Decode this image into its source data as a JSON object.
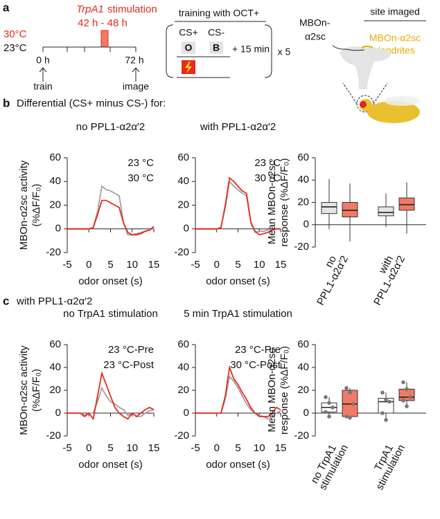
{
  "panel_labels": [
    "a",
    "b",
    "c"
  ],
  "panel_a": {
    "temp_high": "30°C",
    "temp_low": "23°C",
    "stim_gene": "TrpA1",
    "stim_word": "stimulation",
    "stim_window": "42 h - 48 h",
    "t0": "0 h",
    "t0_event": "train",
    "t1": "72 h",
    "t1_event": "image",
    "training_title": "training with OCT+",
    "cs_plus": "CS+",
    "cs_minus": "CS-",
    "odor_plus": "O",
    "odor_minus": "B",
    "interval": "+ 15 min",
    "repeats": "x 5",
    "neuron": [
      "MBOn-",
      "α2sc"
    ],
    "site_title": "site imaged",
    "site": [
      "MBOn-α2sc",
      "dendrites"
    ]
  },
  "panel_b_heading": "Differential (CS+ minus CS-) for:",
  "panel_c_heading": "with PPL1-α2α′2",
  "chart_data": [
    {
      "type": "line",
      "title": "no PPL1-α2α′2",
      "xlabel": "odor onset (s)",
      "ylabel": [
        "MBOn-α2sc activity",
        "(%ΔF/F₀)"
      ],
      "x": [
        -5,
        -4,
        -3,
        -2,
        -1,
        0,
        1,
        2,
        3,
        4,
        5,
        6,
        7,
        8,
        9,
        10,
        11,
        12,
        13,
        14,
        15
      ],
      "xlim": [
        -5,
        15
      ],
      "xticks": [
        -5,
        0,
        5,
        10,
        15
      ],
      "ylim": [
        -20,
        60
      ],
      "yticks": [
        -20,
        0,
        20,
        40,
        60
      ],
      "series": [
        {
          "name": "23 °C",
          "color": "#a0a0a0",
          "values": [
            0,
            0,
            0,
            0,
            0,
            0,
            1,
            15,
            36,
            33,
            32,
            30,
            28,
            5,
            -5,
            -5,
            -4,
            -3,
            -2,
            -1,
            1
          ]
        },
        {
          "name": "30 °C",
          "color": "#e8291c",
          "values": [
            0,
            0,
            0,
            0,
            0,
            0,
            1,
            12,
            24,
            24,
            22,
            20,
            18,
            5,
            -3,
            -5,
            -5,
            -4,
            -2,
            -1,
            2
          ]
        }
      ]
    },
    {
      "type": "line",
      "title": "with PPL1-α2α′2",
      "xlabel": "odor onset (s)",
      "x": [
        -5,
        -4,
        -3,
        -2,
        -1,
        0,
        1,
        2,
        3,
        4,
        5,
        6,
        7,
        8,
        9,
        10,
        11,
        12,
        13,
        14,
        15
      ],
      "xlim": [
        -5,
        15
      ],
      "xticks": [
        -5,
        0,
        5,
        10,
        15
      ],
      "ylim": [
        -20,
        60
      ],
      "yticks": [
        -20,
        0,
        20,
        40,
        60
      ],
      "series": [
        {
          "name": "23 °C",
          "color": "#a0a0a0",
          "values": [
            0,
            0,
            0,
            0,
            0,
            0,
            1,
            18,
            40,
            36,
            33,
            30,
            28,
            5,
            -3,
            -2,
            -2,
            -1,
            0,
            0,
            0
          ]
        },
        {
          "name": "30 °C",
          "color": "#e8291c",
          "values": [
            0,
            0,
            0,
            0,
            0,
            0,
            1,
            20,
            43,
            40,
            36,
            32,
            30,
            6,
            -2,
            -5,
            -4,
            -3,
            -1,
            0,
            0
          ]
        }
      ]
    },
    {
      "type": "box",
      "ylabel": [
        "Mean MBOn-α2sc",
        "response (%ΔF/F₀)"
      ],
      "ylim": [
        -20,
        60
      ],
      "yticks": [
        -20,
        0,
        20,
        40,
        60
      ],
      "categories": [
        [
          "no",
          "PPL1-α2α′2"
        ],
        [
          "with",
          "PPL1-α2α′2"
        ]
      ],
      "boxes": [
        {
          "color": "#e4e4e4",
          "min": -4,
          "q1": 10,
          "median": 16,
          "q3": 20,
          "max": 41
        },
        {
          "color": "#f07a66",
          "min": -15,
          "q1": 7,
          "median": 13,
          "q3": 20,
          "max": 37
        },
        {
          "color": "#e4e4e4",
          "min": -2,
          "q1": 8,
          "median": 11,
          "q3": 16,
          "max": 28
        },
        {
          "color": "#f07a66",
          "min": -8,
          "q1": 13,
          "median": 18,
          "q3": 24,
          "max": 38
        }
      ]
    },
    {
      "type": "line",
      "title": "no TrpA1 stimulation",
      "xlabel": "odor onset (s)",
      "ylabel": [
        "MBOn-α2sc activity",
        "(%ΔF/F₀)"
      ],
      "x": [
        -5,
        -4,
        -3,
        -2,
        -1,
        0,
        1,
        2,
        3,
        4,
        5,
        6,
        7,
        8,
        9,
        10,
        11,
        12,
        13,
        14,
        15
      ],
      "xlim": [
        -5,
        15
      ],
      "xticks": [
        -5,
        0,
        5,
        10,
        15
      ],
      "ylim": [
        -20,
        60
      ],
      "yticks": [
        -20,
        0,
        20,
        40,
        60
      ],
      "series": [
        {
          "name": "23 °C-Pre",
          "color": "#a0a0a0",
          "values": [
            0,
            0,
            0,
            0,
            -2,
            0,
            0,
            10,
            22,
            15,
            10,
            8,
            5,
            3,
            -2,
            0,
            -3,
            -3,
            0,
            2,
            3
          ]
        },
        {
          "name": "23 °C-Post",
          "color": "#e8291c",
          "values": [
            0,
            0,
            0,
            0,
            -3,
            0,
            -5,
            15,
            35,
            25,
            15,
            5,
            0,
            -3,
            -5,
            0,
            -3,
            0,
            3,
            5,
            3
          ]
        }
      ]
    },
    {
      "type": "line",
      "title": "5 min TrpA1 stimulation",
      "xlabel": "odor onset (s)",
      "x": [
        -5,
        -4,
        -3,
        -2,
        -1,
        0,
        1,
        2,
        3,
        4,
        5,
        6,
        7,
        8,
        9,
        10,
        11,
        12,
        13,
        14,
        15
      ],
      "xlim": [
        -5,
        15
      ],
      "xticks": [
        -5,
        0,
        5,
        10,
        15
      ],
      "ylim": [
        -20,
        60
      ],
      "yticks": [
        -20,
        0,
        20,
        40,
        60
      ],
      "series": [
        {
          "name": "23 °C-Pre",
          "color": "#a0a0a0",
          "values": [
            0,
            0,
            0,
            0,
            0,
            0,
            0,
            12,
            32,
            28,
            22,
            15,
            8,
            3,
            0,
            -2,
            -3,
            -5,
            -3,
            0,
            2
          ]
        },
        {
          "name": "30 °C-Post",
          "color": "#e8291c",
          "values": [
            0,
            0,
            0,
            0,
            0,
            0,
            0,
            15,
            40,
            30,
            25,
            18,
            12,
            5,
            0,
            -3,
            -3,
            -3,
            0,
            5,
            3
          ]
        }
      ]
    },
    {
      "type": "box",
      "ylabel": [
        "Mean MBOn-α2sc",
        "response (%ΔF/F₀)"
      ],
      "ylim": [
        -20,
        60
      ],
      "yticks": [
        -20,
        0,
        20,
        40,
        60
      ],
      "categories": [
        [
          "no TrpA1",
          "stimulation"
        ],
        [
          "TrpA1",
          "stimulation"
        ]
      ],
      "boxes": [
        {
          "color": "#ffffff",
          "min": -3,
          "q1": 1,
          "median": 5,
          "q3": 9,
          "max": 14,
          "points": [
            14,
            9,
            5,
            1,
            -3
          ]
        },
        {
          "color": "#f07a66",
          "min": -4,
          "q1": -3,
          "median": 8,
          "q3": 20,
          "max": 22,
          "points": [
            22,
            18,
            8,
            -3,
            -4
          ]
        },
        {
          "color": "#ffffff",
          "min": -6,
          "q1": 0,
          "median": 10,
          "q3": 13,
          "max": 18,
          "points": [
            18,
            12,
            10,
            0,
            -6
          ]
        },
        {
          "color": "#f07a66",
          "min": 6,
          "q1": 11,
          "median": 14,
          "q3": 21,
          "max": 27,
          "points": [
            27,
            21,
            14,
            11,
            6
          ]
        }
      ]
    }
  ]
}
